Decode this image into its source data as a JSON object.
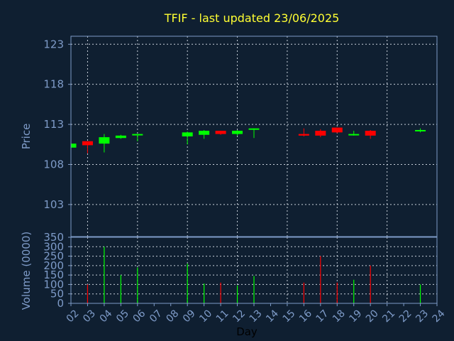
{
  "chart_data": [
    {
      "type": "candlestick",
      "title": "TFIF - last updated 23/06/2025",
      "ylabel": "Price",
      "ylim": [
        99,
        124
      ],
      "yticks": [
        103,
        108,
        113,
        118,
        123
      ],
      "grid": true,
      "colors": {
        "up": "#00ff00",
        "down": "#ff0000"
      },
      "candles": [
        {
          "day": "02",
          "open": 110.1,
          "high": 110.7,
          "low": 110.1,
          "close": 110.6
        },
        {
          "day": "03",
          "open": 110.9,
          "high": 110.9,
          "low": 109.4,
          "close": 110.4
        },
        {
          "day": "04",
          "open": 110.6,
          "high": 111.8,
          "low": 109.5,
          "close": 111.4
        },
        {
          "day": "05",
          "open": 111.3,
          "high": 111.7,
          "low": 111.2,
          "close": 111.6
        },
        {
          "day": "06",
          "open": 111.7,
          "high": 111.8,
          "low": 110.9,
          "close": 111.8
        },
        {
          "day": "09",
          "open": 111.5,
          "high": 112.1,
          "low": 110.5,
          "close": 112.0
        },
        {
          "day": "10",
          "open": 111.7,
          "high": 112.3,
          "low": 111.2,
          "close": 112.2
        },
        {
          "day": "11",
          "open": 112.2,
          "high": 112.2,
          "low": 111.7,
          "close": 111.8
        },
        {
          "day": "12",
          "open": 111.8,
          "high": 112.3,
          "low": 111.6,
          "close": 112.2
        },
        {
          "day": "13",
          "open": 112.4,
          "high": 112.5,
          "low": 111.3,
          "close": 112.5
        },
        {
          "day": "16",
          "open": 111.8,
          "high": 112.5,
          "low": 111.5,
          "close": 111.6
        },
        {
          "day": "17",
          "open": 112.2,
          "high": 112.4,
          "low": 111.4,
          "close": 111.6
        },
        {
          "day": "18",
          "open": 112.6,
          "high": 112.6,
          "low": 111.9,
          "close": 112.0
        },
        {
          "day": "19",
          "open": 111.7,
          "high": 112.2,
          "low": 111.6,
          "close": 111.8
        },
        {
          "day": "20",
          "open": 112.2,
          "high": 112.3,
          "low": 111.2,
          "close": 111.6
        },
        {
          "day": "23",
          "open": 112.2,
          "high": 112.5,
          "low": 112.0,
          "close": 112.3
        }
      ]
    },
    {
      "type": "bar",
      "ylabel": "Volume (0000)",
      "xlabel": "Day",
      "ylim": [
        0,
        350
      ],
      "yticks": [
        0,
        50,
        100,
        150,
        200,
        250,
        300,
        350
      ],
      "grid": true,
      "x_categories": [
        "02",
        "03",
        "04",
        "05",
        "06",
        "07",
        "08",
        "09",
        "10",
        "11",
        "12",
        "13",
        "14",
        "15",
        "16",
        "17",
        "18",
        "19",
        "20",
        "21",
        "22",
        "23",
        "24"
      ],
      "bars": [
        {
          "day": "02",
          "volume": 0,
          "color": "#00ff00"
        },
        {
          "day": "03",
          "volume": 100,
          "color": "#ff0000"
        },
        {
          "day": "04",
          "volume": 300,
          "color": "#00ff00"
        },
        {
          "day": "05",
          "volume": 150,
          "color": "#00ff00"
        },
        {
          "day": "06",
          "volume": 190,
          "color": "#00ff00"
        },
        {
          "day": "09",
          "volume": 210,
          "color": "#00ff00"
        },
        {
          "day": "10",
          "volume": 105,
          "color": "#00ff00"
        },
        {
          "day": "11",
          "volume": 110,
          "color": "#ff0000"
        },
        {
          "day": "12",
          "volume": 95,
          "color": "#00ff00"
        },
        {
          "day": "13",
          "volume": 145,
          "color": "#00ff00"
        },
        {
          "day": "16",
          "volume": 110,
          "color": "#ff0000"
        },
        {
          "day": "17",
          "volume": 250,
          "color": "#ff0000"
        },
        {
          "day": "18",
          "volume": 110,
          "color": "#ff0000"
        },
        {
          "day": "19",
          "volume": 125,
          "color": "#00ff00"
        },
        {
          "day": "20",
          "volume": 200,
          "color": "#ff0000"
        },
        {
          "day": "23",
          "volume": 100,
          "color": "#00ff00"
        }
      ]
    }
  ]
}
